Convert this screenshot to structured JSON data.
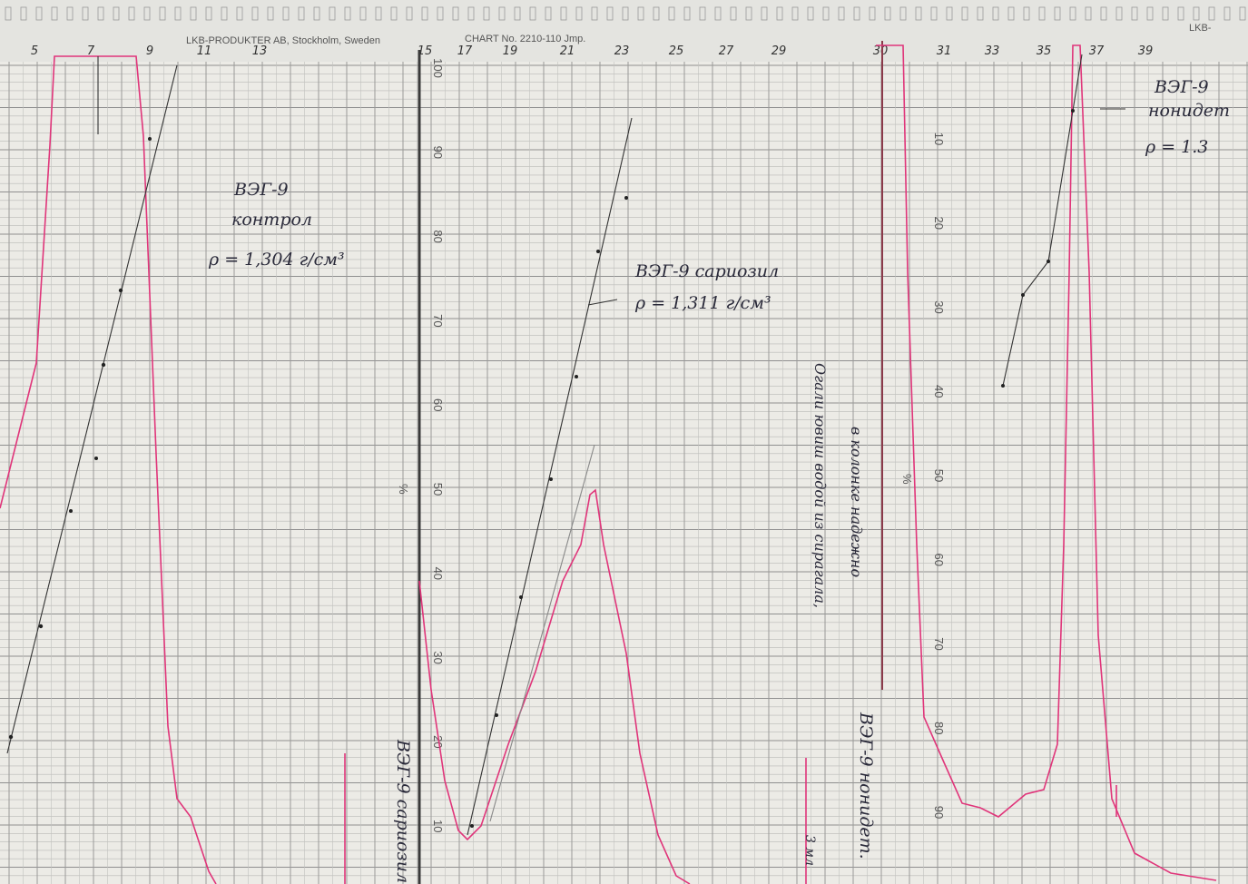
{
  "header": {
    "printed": "LKB-PRODUKTER AB, Stockholm, Sweden",
    "chart_no": "CHART No. 2210-110 Jmp.",
    "brand_right": "LKB-"
  },
  "fraction_numbers": [
    "5",
    "7",
    "9",
    "11",
    "13",
    "15",
    "17",
    "19",
    "21",
    "23",
    "25",
    "27",
    "29",
    "30",
    "31",
    "33",
    "35",
    "37",
    "39"
  ],
  "scale_middle": [
    "100",
    "90",
    "80",
    "70",
    "60",
    "50",
    "40",
    "30",
    "20",
    "10"
  ],
  "scale_right": [
    "10",
    "20",
    "30",
    "40",
    "50",
    "60",
    "70",
    "80",
    "90"
  ],
  "percent_marks": [
    "%",
    "%"
  ],
  "annotations": {
    "control": [
      "ВЭГ-9",
      "контрол",
      "ρ = 1,304 г/см³"
    ],
    "sariozil": [
      "ВЭГ-9 сариозил",
      "ρ = 1,311 г/см³"
    ],
    "sariozil_vertical": "ВЭГ-9 сариозил",
    "wash_note": [
      "Огали ювиш водой из сирагала,",
      "в колонке надежно"
    ],
    "nonidet_vertical": "ВЭГ-9 нонидет.",
    "nonidet": [
      "ВЭГ-9",
      "нонидет",
      "ρ = 1.3"
    ],
    "volume": "3 мл"
  }
}
